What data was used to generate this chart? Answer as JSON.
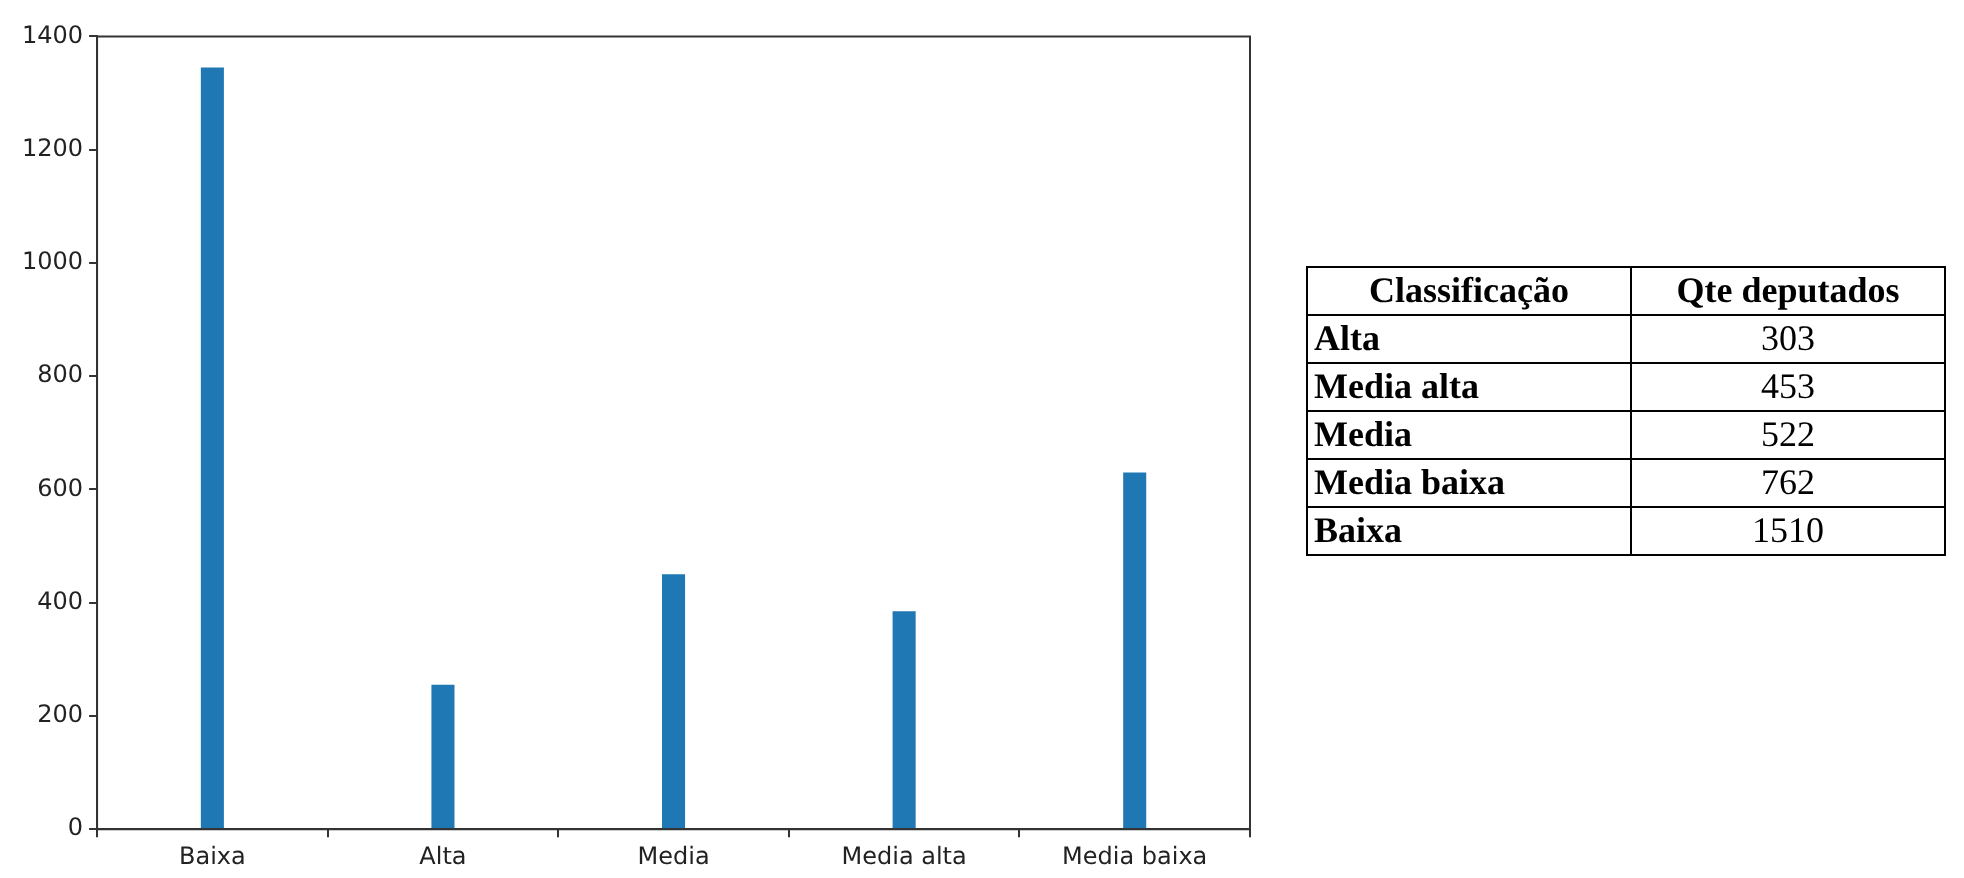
{
  "chart_data": [
    {
      "type": "bar",
      "categories": [
        "Baixa",
        "Alta",
        "Media",
        "Media alta",
        "Media baixa"
      ],
      "values": [
        1345,
        255,
        450,
        385,
        630
      ],
      "color": "#1f77b4",
      "ylim": [
        0,
        1400
      ],
      "yticks": [
        0,
        200,
        400,
        600,
        800,
        1000,
        1200,
        1400
      ]
    },
    {
      "type": "other",
      "xlabel": "Classificação",
      "ylabel": "Qte deputados",
      "categories": [
        "Alta",
        "Media alta",
        "Media",
        "Media baixa",
        "Baixa"
      ],
      "values": [
        303,
        453,
        522,
        762,
        1510
      ],
      "data_labels": true
    }
  ]
}
